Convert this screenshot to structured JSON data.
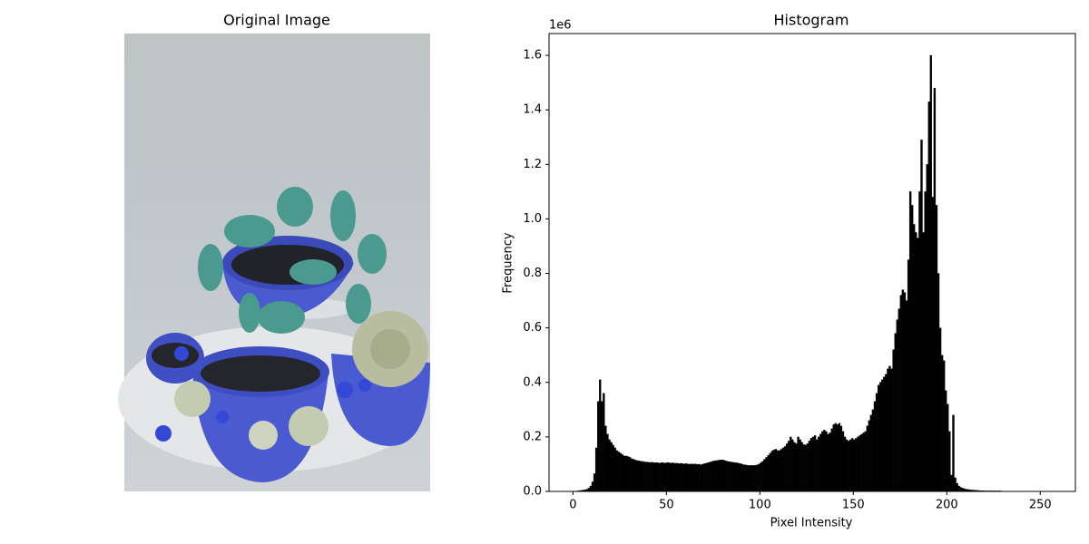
{
  "chart_data": [
    {
      "type": "image",
      "title": "Original Image"
    },
    {
      "type": "histogram",
      "title": "Histogram",
      "xlabel": "Pixel Intensity",
      "ylabel": "Frequency",
      "y_offset_label": "1e6",
      "color": "#000000",
      "grid": false,
      "bins": [
        0,
        1,
        2,
        3,
        4,
        5,
        6,
        7,
        8,
        9,
        10,
        11,
        12,
        13,
        14,
        15,
        16,
        17,
        18,
        19,
        20,
        21,
        22,
        23,
        24,
        25,
        26,
        27,
        28,
        29,
        30,
        31,
        32,
        33,
        34,
        35,
        36,
        37,
        38,
        39,
        40,
        41,
        42,
        43,
        44,
        45,
        46,
        47,
        48,
        49,
        50,
        51,
        52,
        53,
        54,
        55,
        56,
        57,
        58,
        59,
        60,
        61,
        62,
        63,
        64,
        65,
        66,
        67,
        68,
        69,
        70,
        71,
        72,
        73,
        74,
        75,
        76,
        77,
        78,
        79,
        80,
        81,
        82,
        83,
        84,
        85,
        86,
        87,
        88,
        89,
        90,
        91,
        92,
        93,
        94,
        95,
        96,
        97,
        98,
        99,
        100,
        101,
        102,
        103,
        104,
        105,
        106,
        107,
        108,
        109,
        110,
        111,
        112,
        113,
        114,
        115,
        116,
        117,
        118,
        119,
        120,
        121,
        122,
        123,
        124,
        125,
        126,
        127,
        128,
        129,
        130,
        131,
        132,
        133,
        134,
        135,
        136,
        137,
        138,
        139,
        140,
        141,
        142,
        143,
        144,
        145,
        146,
        147,
        148,
        149,
        150,
        151,
        152,
        153,
        154,
        155,
        156,
        157,
        158,
        159,
        160,
        161,
        162,
        163,
        164,
        165,
        166,
        167,
        168,
        169,
        170,
        171,
        172,
        173,
        174,
        175,
        176,
        177,
        178,
        179,
        180,
        181,
        182,
        183,
        184,
        185,
        186,
        187,
        188,
        189,
        190,
        191,
        192,
        193,
        194,
        195,
        196,
        197,
        198,
        199,
        200,
        201,
        202,
        203,
        204,
        205,
        206,
        207,
        208,
        209,
        210,
        211,
        212,
        213,
        214,
        215,
        216,
        217,
        218,
        219,
        220,
        221,
        222,
        223,
        224,
        225,
        226,
        227,
        228,
        229,
        230,
        231,
        232,
        233,
        234,
        235,
        236,
        237,
        238,
        239,
        240,
        241,
        242,
        243,
        244,
        245,
        246,
        247,
        248,
        249,
        250,
        251,
        252,
        253,
        254,
        255,
        256
      ],
      "values": [
        0.001,
        0.001,
        0.002,
        0.003,
        0.004,
        0.005,
        0.006,
        0.008,
        0.012,
        0.02,
        0.035,
        0.065,
        0.16,
        0.33,
        0.41,
        0.33,
        0.36,
        0.24,
        0.21,
        0.19,
        0.18,
        0.17,
        0.16,
        0.15,
        0.145,
        0.14,
        0.135,
        0.13,
        0.13,
        0.128,
        0.125,
        0.12,
        0.118,
        0.115,
        0.113,
        0.112,
        0.11,
        0.11,
        0.108,
        0.108,
        0.107,
        0.106,
        0.107,
        0.105,
        0.106,
        0.105,
        0.104,
        0.106,
        0.105,
        0.104,
        0.106,
        0.105,
        0.104,
        0.105,
        0.103,
        0.104,
        0.102,
        0.103,
        0.102,
        0.101,
        0.102,
        0.101,
        0.1,
        0.101,
        0.1,
        0.101,
        0.099,
        0.1,
        0.098,
        0.1,
        0.102,
        0.104,
        0.106,
        0.108,
        0.11,
        0.112,
        0.113,
        0.114,
        0.115,
        0.116,
        0.115,
        0.113,
        0.111,
        0.109,
        0.108,
        0.107,
        0.106,
        0.105,
        0.104,
        0.102,
        0.1,
        0.098,
        0.097,
        0.096,
        0.095,
        0.096,
        0.095,
        0.096,
        0.097,
        0.1,
        0.105,
        0.11,
        0.118,
        0.125,
        0.132,
        0.14,
        0.148,
        0.152,
        0.155,
        0.15,
        0.15,
        0.155,
        0.16,
        0.165,
        0.175,
        0.185,
        0.2,
        0.19,
        0.18,
        0.175,
        0.2,
        0.19,
        0.18,
        0.172,
        0.17,
        0.175,
        0.185,
        0.195,
        0.2,
        0.205,
        0.19,
        0.2,
        0.21,
        0.22,
        0.225,
        0.22,
        0.21,
        0.215,
        0.23,
        0.245,
        0.25,
        0.245,
        0.25,
        0.24,
        0.22,
        0.2,
        0.19,
        0.185,
        0.19,
        0.195,
        0.19,
        0.195,
        0.2,
        0.205,
        0.21,
        0.215,
        0.22,
        0.24,
        0.26,
        0.28,
        0.3,
        0.33,
        0.36,
        0.39,
        0.4,
        0.41,
        0.42,
        0.43,
        0.45,
        0.46,
        0.45,
        0.52,
        0.58,
        0.63,
        0.67,
        0.72,
        0.74,
        0.73,
        0.7,
        0.85,
        1.1,
        1.05,
        0.98,
        0.95,
        0.93,
        1.1,
        1.29,
        0.95,
        1.1,
        1.2,
        1.43,
        1.6,
        1.08,
        1.48,
        1.05,
        0.8,
        0.6,
        0.5,
        0.48,
        0.37,
        0.32,
        0.22,
        0.06,
        0.28,
        0.05,
        0.03,
        0.02,
        0.015,
        0.012,
        0.01,
        0.008,
        0.007,
        0.006,
        0.005,
        0.005,
        0.004,
        0.004,
        0.003,
        0.003,
        0.003,
        0.002,
        0.002,
        0.002,
        0.002,
        0.002,
        0.002,
        0.002,
        0.002,
        0.002,
        0,
        0,
        0,
        0,
        0,
        0,
        0,
        0,
        0,
        0,
        0,
        0,
        0,
        0,
        0,
        0,
        0,
        0,
        0,
        0,
        0,
        0,
        0,
        0,
        0,
        0,
        0
      ],
      "xlim": [
        -12.8,
        268.8
      ],
      "xticks": [
        0,
        50,
        100,
        150,
        200,
        250
      ],
      "ylim": [
        0,
        1.68
      ],
      "yticks": [
        {
          "value": 0,
          "label": "0.0"
        },
        0.2,
        0.4,
        0.6,
        0.8,
        {
          "value": 1,
          "label": "1.0"
        },
        1.2,
        1.4,
        1.6
      ]
    }
  ]
}
